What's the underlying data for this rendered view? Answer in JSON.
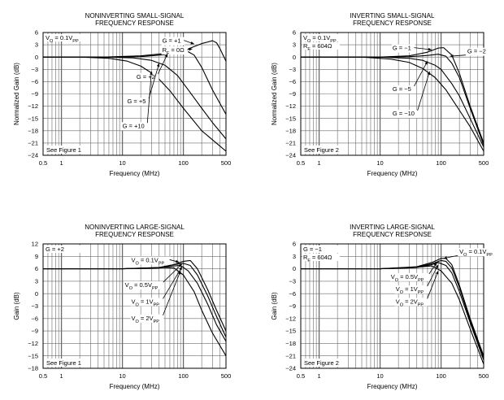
{
  "figure_title": "Frequency response charts",
  "colors": {
    "grid": "#6a6a6a",
    "line": "#000000",
    "background": "#ffffff"
  },
  "chart_data": [
    {
      "id": "ni-small",
      "type": "line",
      "title_lines": [
        "NONINVERTING SMALL-SIGNAL",
        "FREQUENCY RESPONSE"
      ],
      "xlabel": "Frequency (MHz)",
      "ylabel": "Normalized Gain (dB)",
      "xscale": "log",
      "xlim": [
        0.5,
        500
      ],
      "ylim": [
        -24,
        6
      ],
      "ystep": 3,
      "x_tick_labels": [
        {
          "v": 0.5,
          "t": "0.5"
        },
        {
          "v": 1,
          "t": "1"
        },
        {
          "v": 10,
          "t": "10"
        },
        {
          "v": 100,
          "t": "100"
        },
        {
          "v": 500,
          "t": "500"
        }
      ],
      "conditions": [
        {
          "main": "V",
          "sub": "O",
          "rest": " = 0.1V",
          "sub2": "PP"
        }
      ],
      "note": "See Figure 1",
      "series": [
        {
          "name": "G = +1",
          "x": [
            0.5,
            5,
            20,
            60,
            120,
            200,
            300,
            350,
            400,
            500
          ],
          "y": [
            0,
            0,
            0.3,
            1.0,
            2.0,
            3.3,
            4.0,
            3.5,
            2.0,
            -1.0
          ]
        },
        {
          "name": "G = +2",
          "x": [
            0.5,
            5,
            20,
            50,
            80,
            120,
            150,
            200,
            300,
            500
          ],
          "y": [
            0,
            0,
            0.1,
            0.6,
            1.2,
            1.3,
            0.5,
            -2.5,
            -8.0,
            -14.0
          ]
        },
        {
          "name": "G = +5",
          "x": [
            0.5,
            5,
            15,
            30,
            50,
            80,
            120,
            200,
            300,
            500
          ],
          "y": [
            0,
            0,
            -0.2,
            -0.8,
            -2.0,
            -4.5,
            -8.0,
            -12.5,
            -16.0,
            -20.0
          ]
        },
        {
          "name": "G = +10",
          "x": [
            0.5,
            2,
            6,
            12,
            20,
            35,
            60,
            100,
            200,
            500
          ],
          "y": [
            0,
            0,
            -0.3,
            -1.0,
            -2.2,
            -4.5,
            -8.2,
            -12.5,
            -18.0,
            -23.0
          ]
        }
      ],
      "annotations": [
        {
          "text": "G = +1",
          "x": 45,
          "y": 3.5,
          "ax": 150,
          "ay": 3.2
        },
        {
          "text": "R",
          "sub": "F",
          "rest": " = 0Ω",
          "x": 45,
          "y": 1.2,
          "ax": 140,
          "ay": 2.0
        },
        {
          "text": "G = +2",
          "x": 17,
          "y": -5.3,
          "ax": 55,
          "ay": 0.8
        },
        {
          "text": "G = +5",
          "x": 12,
          "y": -11.3,
          "ax": 40,
          "ay": -1.5
        },
        {
          "text": "G = +10",
          "x": 10,
          "y": -17.3,
          "ax": 30,
          "ay": -3.5
        }
      ]
    },
    {
      "id": "inv-small",
      "type": "line",
      "title_lines": [
        "INVERTING SMALL-SIGNAL",
        "FREQUENCY RESPONSE"
      ],
      "xlabel": "Frequency (MHz)",
      "ylabel": "Normalized Gain (dB)",
      "xscale": "log",
      "xlim": [
        0.5,
        500
      ],
      "ylim": [
        -24,
        6
      ],
      "ystep": 3,
      "x_tick_labels": [
        {
          "v": 0.5,
          "t": "0.5"
        },
        {
          "v": 1,
          "t": "1"
        },
        {
          "v": 10,
          "t": "10"
        },
        {
          "v": 100,
          "t": "100"
        },
        {
          "v": 500,
          "t": "500"
        }
      ],
      "conditions": [
        {
          "main": "V",
          "sub": "O",
          "rest": " = 0.1V",
          "sub2": "PP"
        },
        {
          "main": "R",
          "sub": "F",
          "rest": " = 604Ω",
          "sub2": ""
        }
      ],
      "note": "See Figure 2",
      "series": [
        {
          "name": "G = −1",
          "x": [
            0.5,
            10,
            30,
            60,
            90,
            110,
            150,
            200,
            300,
            500
          ],
          "y": [
            0,
            0,
            0.3,
            1.2,
            2.2,
            2.3,
            0.5,
            -4.0,
            -12.0,
            -21.0
          ]
        },
        {
          "name": "G = −2",
          "x": [
            0.5,
            10,
            30,
            60,
            90,
            120,
            150,
            200,
            300,
            500
          ],
          "y": [
            0,
            0,
            0.1,
            0.4,
            0.7,
            0.2,
            -1.5,
            -5.0,
            -12.5,
            -21.5
          ]
        },
        {
          "name": "G = −5",
          "x": [
            0.5,
            10,
            30,
            50,
            80,
            100,
            150,
            200,
            300,
            500
          ],
          "y": [
            0,
            0,
            -0.3,
            -0.8,
            -2.0,
            -3.0,
            -6.5,
            -9.5,
            -15.0,
            -22.0
          ]
        },
        {
          "name": "G = −10",
          "x": [
            0.5,
            5,
            15,
            30,
            50,
            80,
            120,
            200,
            300,
            500
          ],
          "y": [
            0,
            0,
            -0.5,
            -1.3,
            -2.8,
            -5.0,
            -8.0,
            -13.0,
            -17.0,
            -23.0
          ]
        }
      ],
      "annotations": [
        {
          "text": "G = −1",
          "x": 16,
          "y": 1.7,
          "ax": 70,
          "ay": 1.8
        },
        {
          "text": "G = −2",
          "x": 270,
          "y": 0.9,
          "ax": 140,
          "ay": 0.2
        },
        {
          "text": "G = −5",
          "x": 16,
          "y": -8.3,
          "ax": 60,
          "ay": -1.0
        },
        {
          "text": "G = −10",
          "x": 16,
          "y": -14.3,
          "ax": 65,
          "ay": -3.5
        }
      ]
    },
    {
      "id": "ni-large",
      "type": "line",
      "title_lines": [
        "NONINVERTING LARGE-SIGNAL",
        "FREQUENCY RESPONSE"
      ],
      "xlabel": "Frequency (MHz)",
      "ylabel": "Gain (dB)",
      "xscale": "log",
      "xlim": [
        0.5,
        500
      ],
      "ylim": [
        -18,
        12
      ],
      "ystep": 3,
      "x_tick_labels": [
        {
          "v": 0.5,
          "t": "0.5"
        },
        {
          "v": 1,
          "t": "1"
        },
        {
          "v": 10,
          "t": "10"
        },
        {
          "v": 100,
          "t": "100"
        },
        {
          "v": 500,
          "t": "500"
        }
      ],
      "conditions": [
        {
          "main": "G = +2",
          "sub": "",
          "rest": "",
          "sub2": ""
        }
      ],
      "note": "See Figure 1",
      "series": [
        {
          "name": "VO = 0.1VPP",
          "x": [
            0.5,
            10,
            40,
            70,
            100,
            130,
            170,
            250,
            350,
            500
          ],
          "y": [
            6,
            6,
            6.3,
            7.0,
            7.8,
            8.0,
            6.0,
            1.0,
            -4.0,
            -9.0
          ]
        },
        {
          "name": "VO = 0.5VPP",
          "x": [
            0.5,
            10,
            40,
            70,
            100,
            130,
            170,
            250,
            350,
            500
          ],
          "y": [
            6,
            6,
            6.3,
            7.0,
            7.3,
            6.8,
            4.5,
            -0.5,
            -5.5,
            -10.5
          ]
        },
        {
          "name": "VO = 1VPP",
          "x": [
            0.5,
            10,
            40,
            70,
            90,
            120,
            170,
            250,
            350,
            500
          ],
          "y": [
            6,
            6,
            6.2,
            6.7,
            6.8,
            5.5,
            2.5,
            -2.5,
            -7.5,
            -11.5
          ]
        },
        {
          "name": "VO = 2VPP",
          "x": [
            0.5,
            10,
            30,
            50,
            70,
            100,
            150,
            200,
            300,
            500
          ],
          "y": [
            6,
            6,
            6.1,
            6.3,
            6.2,
            4.5,
            0.5,
            -4.0,
            -9.5,
            -15.0
          ]
        }
      ],
      "annotations": [
        {
          "text": "V",
          "sub": "O",
          "rest": " = 0.1V",
          "sub2": "PP",
          "x": 14,
          "y": 7.6,
          "ax": 85,
          "ay": 7.6
        },
        {
          "text": "V",
          "sub": "O",
          "rest": " = 0.5V",
          "sub2": "PP",
          "x": 11,
          "y": 1.6,
          "ax": 95,
          "ay": 7.2
        },
        {
          "text": "V",
          "sub": "O",
          "rest": " = 1V",
          "sub2": "PP",
          "x": 14,
          "y": -2.4,
          "ax": 95,
          "ay": 6.5
        },
        {
          "text": "V",
          "sub": "O",
          "rest": " = 2V",
          "sub2": "PP",
          "x": 14,
          "y": -6.4,
          "ax": 90,
          "ay": 5.5
        }
      ]
    },
    {
      "id": "inv-large",
      "type": "line",
      "title_lines": [
        "INVERTING LARGE-SIGNAL",
        "FREQUENCY RESPONSE"
      ],
      "xlabel": "Frequency (MHz)",
      "ylabel": "Gain (dB)",
      "xscale": "log",
      "xlim": [
        0.5,
        500
      ],
      "ylim": [
        -24,
        6
      ],
      "ystep": 3,
      "x_tick_labels": [
        {
          "v": 0.5,
          "t": "0.5"
        },
        {
          "v": 1,
          "t": "1"
        },
        {
          "v": 10,
          "t": "10"
        },
        {
          "v": 100,
          "t": "100"
        },
        {
          "v": 500,
          "t": "500"
        }
      ],
      "conditions": [
        {
          "main": "G = −1",
          "sub": "",
          "rest": "",
          "sub2": ""
        },
        {
          "main": "R",
          "sub": "F",
          "rest": " = 604Ω",
          "sub2": ""
        }
      ],
      "note": "See Figure 2",
      "series": [
        {
          "name": "VO = 0.1VPP",
          "x": [
            0.5,
            10,
            40,
            70,
            100,
            120,
            150,
            200,
            300,
            500
          ],
          "y": [
            0,
            0,
            0.5,
            1.5,
            2.5,
            2.5,
            1.0,
            -4.0,
            -12.0,
            -21.0
          ]
        },
        {
          "name": "VO = 0.5VPP",
          "x": [
            0.5,
            10,
            40,
            70,
            100,
            120,
            150,
            200,
            300,
            500
          ],
          "y": [
            0,
            0,
            0.4,
            1.2,
            2.0,
            1.8,
            0.2,
            -4.5,
            -12.5,
            -21.5
          ]
        },
        {
          "name": "VO = 1VPP",
          "x": [
            0.5,
            10,
            40,
            70,
            90,
            120,
            150,
            200,
            300,
            500
          ],
          "y": [
            0,
            0,
            0.3,
            1.0,
            1.5,
            0.8,
            -1.0,
            -5.5,
            -13.0,
            -22.0
          ]
        },
        {
          "name": "VO = 2VPP",
          "x": [
            0.5,
            10,
            30,
            50,
            70,
            100,
            150,
            200,
            300,
            500
          ],
          "y": [
            0,
            0,
            0.2,
            0.5,
            0.7,
            -0.5,
            -3.5,
            -7.5,
            -14.5,
            -23.0
          ]
        }
      ],
      "annotations": [
        {
          "text": "V",
          "sub": "O",
          "rest": " = 0.1V",
          "sub2": "PP",
          "x": 200,
          "y": 3.6,
          "ax": 110,
          "ay": 2.5
        },
        {
          "text": "V",
          "sub": "O",
          "rest": " = 0.5V",
          "sub2": "PP",
          "x": 15,
          "y": -2.4,
          "ax": 85,
          "ay": 1.5
        },
        {
          "text": "V",
          "sub": "O",
          "rest": " = 1V",
          "sub2": "PP",
          "x": 18,
          "y": -5.4,
          "ax": 90,
          "ay": 1.0
        },
        {
          "text": "V",
          "sub": "O",
          "rest": " = 2V",
          "sub2": "PP",
          "x": 18,
          "y": -8.4,
          "ax": 90,
          "ay": -0.5
        }
      ]
    }
  ]
}
